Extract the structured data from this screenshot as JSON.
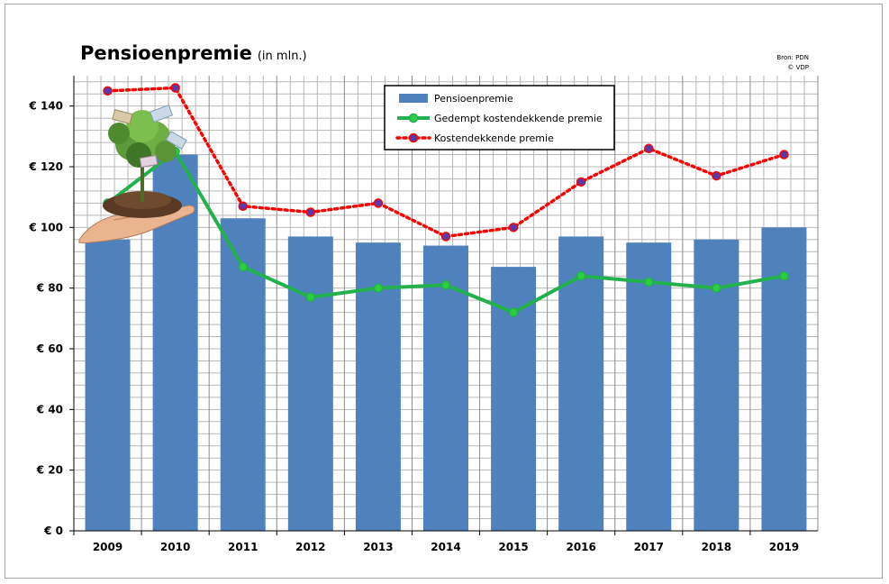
{
  "header": {
    "title": "Pensioenpremie",
    "subtitle": "(in mln.)",
    "source": "Bron: PDN",
    "copyright": "© VDP"
  },
  "colors": {
    "bar": "#4f81bd",
    "reduced_line": "#22b14c",
    "reduced_marker_fill": "#2ecc40",
    "full_line": "#ff0000",
    "full_marker_fill": "#5a3aa8",
    "grid": "#b8b8b8",
    "plot_bg": "#ffffff"
  },
  "chart_data": {
    "type": "bar",
    "categories": [
      "2009",
      "2010",
      "2011",
      "2012",
      "2013",
      "2014",
      "2015",
      "2016",
      "2017",
      "2018",
      "2019"
    ],
    "y_tick_labels": [
      "€ 0",
      "€ 20",
      "€ 40",
      "€ 60",
      "€ 80",
      "€ 100",
      "€ 120",
      "€ 140"
    ],
    "ylim": [
      0,
      150
    ],
    "y_major_step": 20,
    "y_minor_step": 4,
    "grid": true,
    "legend_placement": "top-center",
    "series": [
      {
        "name": "Pensioenpremie",
        "kind": "bar",
        "values": [
          96,
          124,
          103,
          97,
          95,
          94,
          87,
          97,
          95,
          96,
          100
        ]
      },
      {
        "name": "Gedempt kostendekkende premie",
        "kind": "line",
        "values": [
          108,
          125,
          87,
          77,
          80,
          81,
          72,
          84,
          82,
          80,
          84
        ]
      },
      {
        "name": "Kostendekkende premie",
        "kind": "line-dotted",
        "values": [
          145,
          146,
          107,
          105,
          108,
          97,
          100,
          115,
          126,
          117,
          124
        ]
      }
    ]
  }
}
